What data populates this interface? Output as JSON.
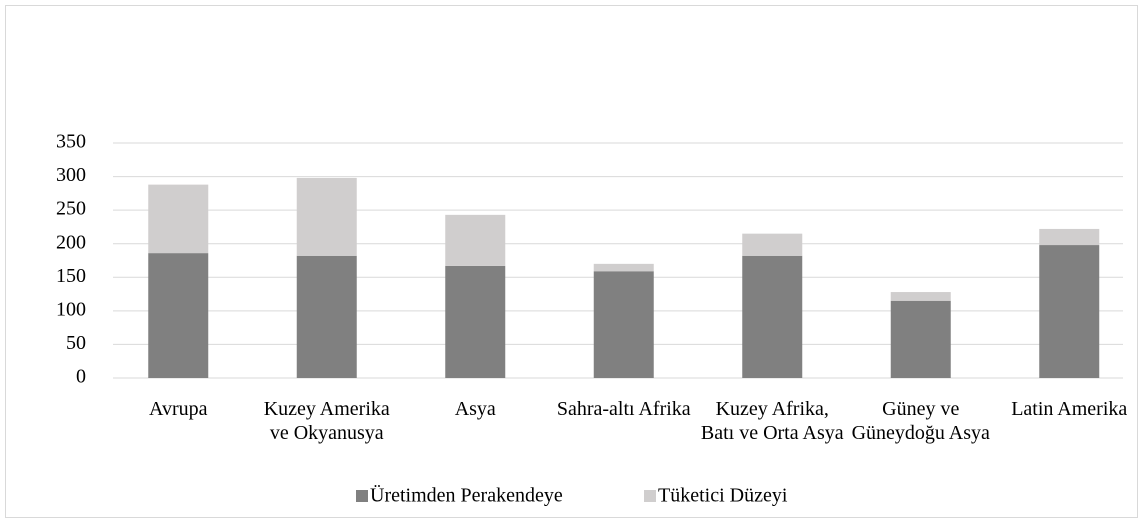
{
  "chart_data": {
    "type": "stacked-bar",
    "categories": [
      "Avrupa",
      "Kuzey Amerika ve Okyanusya",
      "Asya",
      "Sahra-altı Afrika",
      "Kuzey Afrika, Batı ve Orta Asya",
      "Güney ve Güneydoğu Asya",
      "Latin Amerika"
    ],
    "series": [
      {
        "name": "Üretimden Perakendeye",
        "color": "#808080",
        "values": [
          186,
          182,
          167,
          159,
          182,
          115,
          198
        ]
      },
      {
        "name": "Tüketici Düzeyi",
        "color": "#d0cece",
        "values": [
          102,
          116,
          76,
          11,
          33,
          13,
          24
        ]
      }
    ],
    "ylim": [
      0,
      350
    ],
    "yticks": [
      0,
      50,
      100,
      150,
      200,
      250,
      300,
      350
    ],
    "grid": true,
    "legend": "bottom"
  }
}
